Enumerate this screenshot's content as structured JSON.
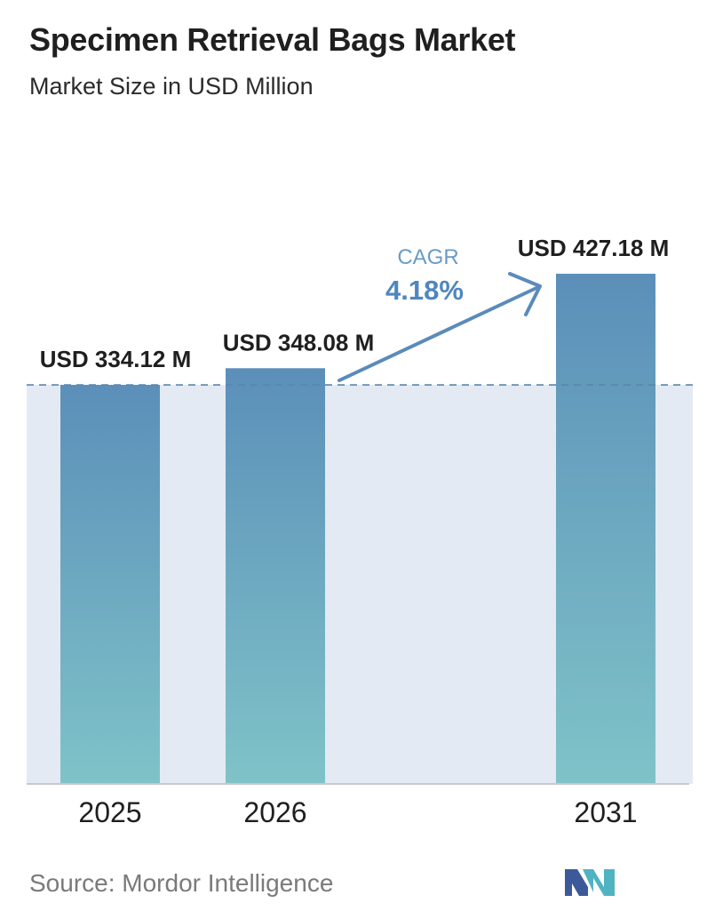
{
  "header": {
    "title": "Specimen Retrieval Bags Market",
    "subtitle": "Market Size in USD Million"
  },
  "chart_data": {
    "type": "bar",
    "categories": [
      "2025",
      "2026",
      "2031"
    ],
    "values": [
      334.12,
      348.08,
      427.18
    ],
    "value_labels": [
      "USD 334.12 M",
      "USD 348.08 M",
      "USD 427.18 M"
    ],
    "title": "Specimen Retrieval Bags Market",
    "subtitle": "Market Size in USD Million",
    "xlabel": "",
    "ylabel": "",
    "ylim": [
      0,
      427.18
    ],
    "grid": false,
    "legend": "none",
    "annotations": {
      "cagr_label": "CAGR",
      "cagr_value": "4.18%"
    },
    "colors": {
      "bar_top": "#5b8fb9",
      "bar_bottom": "#7fc3c8",
      "band": "#e3eaf3",
      "dashed_line": "#5a86b0",
      "arrow": "#5a8bba",
      "cagr_label": "#6a9bc6",
      "cagr_value": "#4f86be"
    }
  },
  "footer": {
    "source": "Source: Mordor Intelligence",
    "logo_colors": [
      "#3c5a99",
      "#4fb3c2"
    ]
  }
}
